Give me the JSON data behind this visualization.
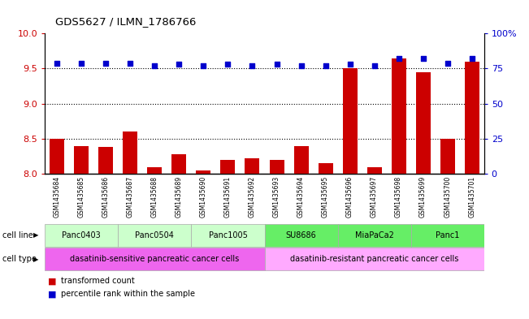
{
  "title": "GDS5627 / ILMN_1786766",
  "samples": [
    "GSM1435684",
    "GSM1435685",
    "GSM1435686",
    "GSM1435687",
    "GSM1435688",
    "GSM1435689",
    "GSM1435690",
    "GSM1435691",
    "GSM1435692",
    "GSM1435693",
    "GSM1435694",
    "GSM1435695",
    "GSM1435696",
    "GSM1435697",
    "GSM1435698",
    "GSM1435699",
    "GSM1435700",
    "GSM1435701"
  ],
  "bar_values": [
    8.5,
    8.4,
    8.38,
    8.6,
    8.1,
    8.28,
    8.05,
    8.2,
    8.22,
    8.2,
    8.4,
    8.15,
    9.5,
    8.1,
    9.65,
    9.45,
    8.5,
    9.6
  ],
  "dot_values": [
    79,
    79,
    79,
    79,
    77,
    78,
    77,
    78,
    77,
    78,
    77,
    77,
    78,
    77,
    82,
    82,
    79,
    82
  ],
  "bar_color": "#cc0000",
  "dot_color": "#0000cc",
  "ylim_left": [
    8.0,
    10.0
  ],
  "ylim_right": [
    0,
    100
  ],
  "yticks_left": [
    8.0,
    8.5,
    9.0,
    9.5,
    10.0
  ],
  "yticks_right": [
    0,
    25,
    50,
    75,
    100
  ],
  "ytick_labels_right": [
    "0",
    "25",
    "50",
    "75",
    "100%"
  ],
  "grid_values": [
    8.5,
    9.0,
    9.5
  ],
  "cell_lines": [
    {
      "label": "Panc0403",
      "start": 0,
      "end": 3,
      "color": "#ccffcc"
    },
    {
      "label": "Panc0504",
      "start": 3,
      "end": 6,
      "color": "#ccffcc"
    },
    {
      "label": "Panc1005",
      "start": 6,
      "end": 9,
      "color": "#ccffcc"
    },
    {
      "label": "SU8686",
      "start": 9,
      "end": 12,
      "color": "#66ee66"
    },
    {
      "label": "MiaPaCa2",
      "start": 12,
      "end": 15,
      "color": "#66ee66"
    },
    {
      "label": "Panc1",
      "start": 15,
      "end": 18,
      "color": "#66ee66"
    }
  ],
  "cell_types": [
    {
      "label": "dasatinib-sensitive pancreatic cancer cells",
      "start": 0,
      "end": 9,
      "color": "#ee66ee"
    },
    {
      "label": "dasatinib-resistant pancreatic cancer cells",
      "start": 9,
      "end": 18,
      "color": "#ffaaff"
    }
  ],
  "cell_line_label": "cell line",
  "cell_type_label": "cell type",
  "legend_bar_label": "transformed count",
  "legend_dot_label": "percentile rank within the sample"
}
